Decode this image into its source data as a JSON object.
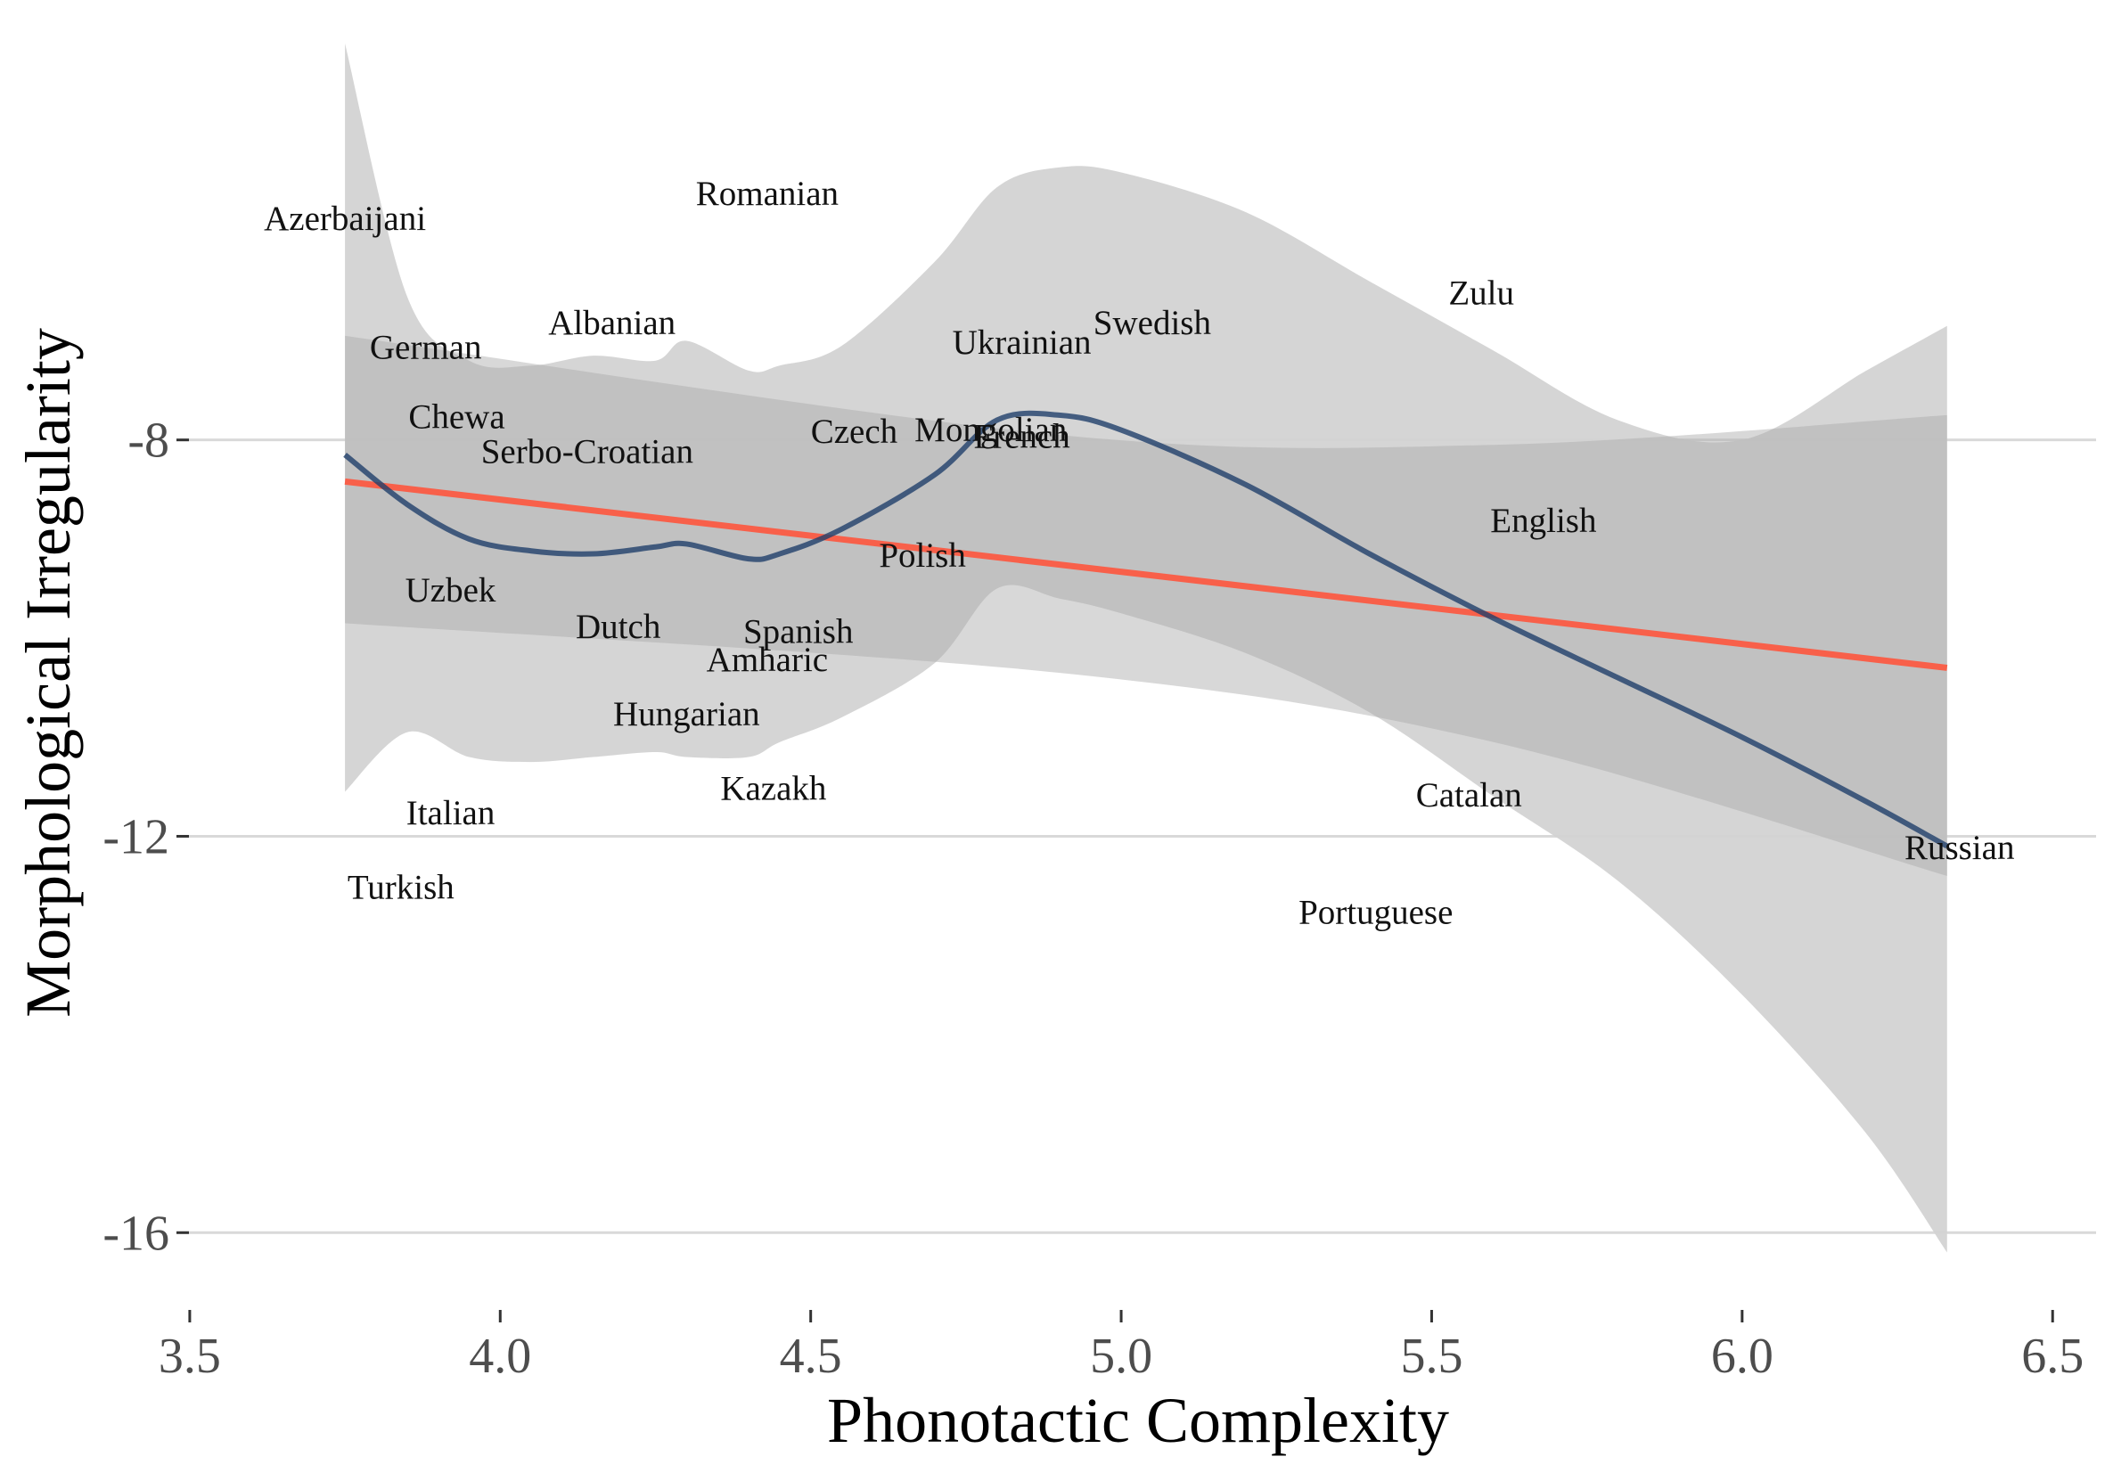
{
  "chart_data": {
    "type": "scatter",
    "title": "",
    "xlabel": "Phonotactic Complexity",
    "ylabel": "Morphological Irregularity",
    "xlim": [
      3.47,
      6.57
    ],
    "ylim": [
      -16.6,
      -4.1
    ],
    "x_ticks": [
      3.5,
      4.0,
      4.5,
      5.0,
      5.5,
      6.0,
      6.5
    ],
    "x_tick_labels": [
      "3.5",
      "4.0",
      "4.5",
      "5.0",
      "5.5",
      "6.0",
      "6.5"
    ],
    "y_ticks": [
      -8,
      -12,
      -16
    ],
    "y_tick_labels": [
      "-8",
      "-12",
      "-16"
    ],
    "grid": "horizontal major lines",
    "legend": "none",
    "points": [
      {
        "label": "Azerbaijani",
        "x": 3.75,
        "y": -5.8
      },
      {
        "label": "Romanian",
        "x": 4.43,
        "y": -5.55
      },
      {
        "label": "German",
        "x": 3.88,
        "y": -7.1
      },
      {
        "label": "Albanian",
        "x": 4.18,
        "y": -6.85
      },
      {
        "label": "Chewa",
        "x": 3.93,
        "y": -7.8
      },
      {
        "label": "Serbo-Croatian",
        "x": 4.14,
        "y": -8.15
      },
      {
        "label": "Ukrainian",
        "x": 4.84,
        "y": -7.05
      },
      {
        "label": "Swedish",
        "x": 5.05,
        "y": -6.85
      },
      {
        "label": "Zulu",
        "x": 5.58,
        "y": -6.55
      },
      {
        "label": "Czech",
        "x": 4.57,
        "y": -7.95
      },
      {
        "label": "Mongolian",
        "x": 4.79,
        "y": -7.93
      },
      {
        "label": "French",
        "x": 4.84,
        "y": -8.0
      },
      {
        "label": "English",
        "x": 5.68,
        "y": -8.85
      },
      {
        "label": "Polish",
        "x": 4.68,
        "y": -9.2
      },
      {
        "label": "Uzbek",
        "x": 3.92,
        "y": -9.55
      },
      {
        "label": "Dutch",
        "x": 4.19,
        "y": -9.92
      },
      {
        "label": "Spanish",
        "x": 4.48,
        "y": -9.97
      },
      {
        "label": "Amharic",
        "x": 4.43,
        "y": -10.25
      },
      {
        "label": "Hungarian",
        "x": 4.3,
        "y": -10.8
      },
      {
        "label": "Kazakh",
        "x": 4.44,
        "y": -11.55
      },
      {
        "label": "Catalan",
        "x": 5.56,
        "y": -11.62
      },
      {
        "label": "Italian",
        "x": 3.92,
        "y": -11.8
      },
      {
        "label": "Russian",
        "x": 6.35,
        "y": -12.15
      },
      {
        "label": "Turkish",
        "x": 3.84,
        "y": -12.55
      },
      {
        "label": "Portuguese",
        "x": 5.41,
        "y": -12.8
      }
    ],
    "series": [
      {
        "type": "linear-fit",
        "color": "#f8604a",
        "x": [
          3.75,
          6.33
        ],
        "y": [
          -8.42,
          -10.3
        ],
        "band_color": "#a9a9a9",
        "band_lower": [
          -9.85,
          -10.35,
          -11.05,
          -12.4
        ],
        "band_upper": [
          -6.95,
          -7.95,
          -8.05,
          -7.75
        ],
        "band_x": [
          3.75,
          4.9,
          5.6,
          6.33
        ]
      },
      {
        "type": "loess",
        "color": "#1f3f6a",
        "x": [
          3.75,
          3.85,
          3.95,
          4.05,
          4.15,
          4.25,
          4.3,
          4.4,
          4.45,
          4.55,
          4.7,
          4.8,
          4.9,
          5.0,
          5.2,
          5.4,
          5.6,
          5.8,
          6.0,
          6.2,
          6.33
        ],
        "y": [
          -8.15,
          -8.65,
          -9.0,
          -9.12,
          -9.15,
          -9.08,
          -9.05,
          -9.2,
          -9.15,
          -8.9,
          -8.35,
          -7.8,
          -7.75,
          -7.9,
          -8.45,
          -9.15,
          -9.8,
          -10.4,
          -11.0,
          -11.65,
          -12.1
        ],
        "band_color": "#d3d3d3",
        "band_upper": [
          -4.0,
          -6.55,
          -7.2,
          -7.25,
          -7.15,
          -7.2,
          -7.0,
          -7.3,
          -7.25,
          -7.05,
          -6.2,
          -5.45,
          -5.25,
          -5.3,
          -5.7,
          -6.4,
          -7.1,
          -7.8,
          -8.0,
          -7.3,
          -6.85
        ],
        "band_lower": [
          -11.55,
          -10.95,
          -11.2,
          -11.25,
          -11.2,
          -11.15,
          -11.2,
          -11.2,
          -11.05,
          -10.8,
          -10.25,
          -9.5,
          -9.6,
          -9.75,
          -10.15,
          -10.75,
          -11.6,
          -12.45,
          -13.6,
          -15.0,
          -16.2
        ]
      }
    ]
  }
}
